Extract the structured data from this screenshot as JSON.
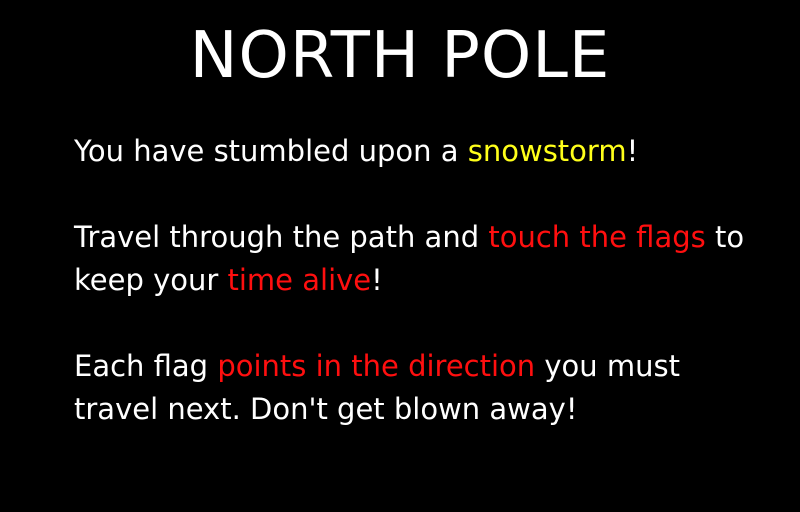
{
  "title": "NORTH POLE",
  "colors": {
    "background": "#000000",
    "text": "#ffffff",
    "highlight_yellow": "#ffff1a",
    "highlight_red": "#ff0f0f"
  },
  "paragraphs": [
    {
      "parts": [
        "You have stumbled upon a ",
        "snowstorm",
        "!"
      ]
    },
    {
      "parts": [
        "Travel through the path and ",
        "touch the flags",
        " to keep your ",
        "time alive",
        "!"
      ]
    },
    {
      "parts": [
        "Each flag ",
        "points in the direction",
        " you must travel next. Don't get blown away!"
      ]
    }
  ]
}
